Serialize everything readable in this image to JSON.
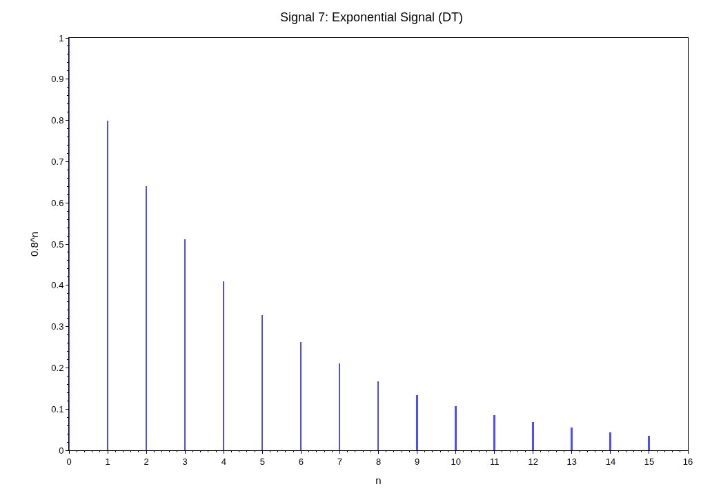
{
  "chart_data": {
    "type": "bar",
    "title": "Signal 7: Exponential Signal (DT)",
    "xlabel": "n",
    "ylabel": "0.8^n",
    "x": [
      0,
      1,
      2,
      3,
      4,
      5,
      6,
      7,
      8,
      9,
      10,
      11,
      12,
      13,
      14,
      15
    ],
    "series": [
      {
        "color": "#4d4dff",
        "values": [
          1,
          0.8,
          0.64,
          0.512,
          0.41,
          0.328,
          0.262,
          0.21,
          0.168,
          0.134,
          0.107,
          0.086,
          0.069,
          0.055,
          0.044,
          0.035
        ]
      }
    ],
    "xlim": [
      0,
      16
    ],
    "xticks": [
      0,
      1,
      2,
      3,
      4,
      5,
      6,
      7,
      8,
      9,
      10,
      11,
      12,
      13,
      14,
      15,
      16
    ],
    "ylim": [
      0,
      1
    ],
    "yticks": [
      0,
      0.1,
      0.2,
      0.3,
      0.4,
      0.5,
      0.6,
      0.7,
      0.8,
      0.9,
      1
    ]
  }
}
